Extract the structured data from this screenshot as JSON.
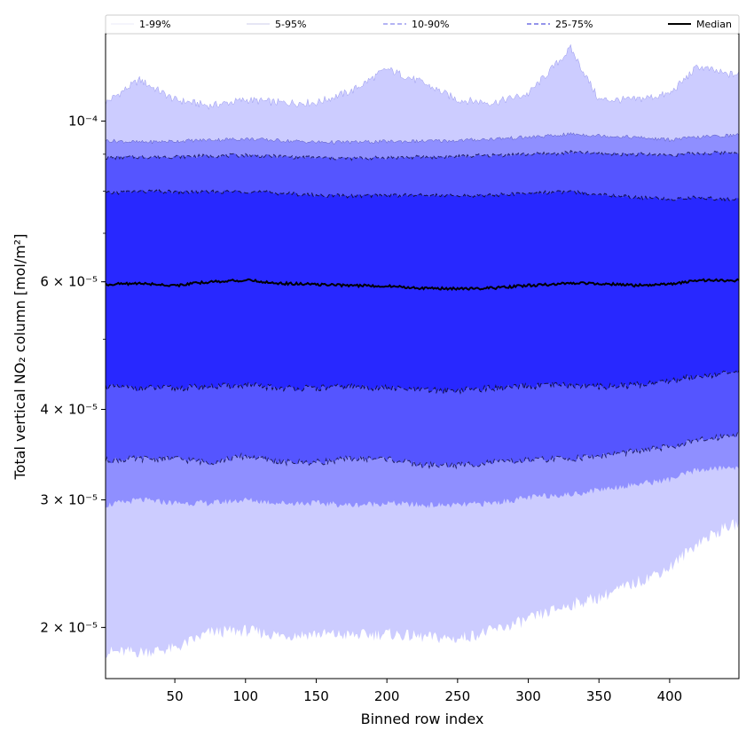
{
  "chart_data": {
    "type": "area",
    "title": "",
    "xlabel": "Binned row index",
    "ylabel": "Total vertical NO₂ column [mol/m²]",
    "xlim": [
      1,
      449
    ],
    "ylim": [
      1.7e-05,
      0.000132
    ],
    "yscale": "log",
    "grid": false,
    "legend_position": "top",
    "x_ticks": [
      50,
      100,
      150,
      200,
      250,
      300,
      350,
      400
    ],
    "y_ticks": [
      {
        "value": 2e-05,
        "label": "2 × 10⁻⁵"
      },
      {
        "value": 3e-05,
        "label": "3 × 10⁻⁵"
      },
      {
        "value": 4e-05,
        "label": "4 × 10⁻⁵"
      },
      {
        "value": 6e-05,
        "label": "6 × 10⁻⁵"
      },
      {
        "value": 0.0001,
        "label": "10⁻⁴"
      }
    ],
    "x": [
      1,
      25,
      50,
      75,
      100,
      125,
      150,
      175,
      200,
      225,
      250,
      275,
      300,
      320,
      330,
      350,
      375,
      400,
      420,
      440,
      449
    ],
    "bands": [
      {
        "name": "1-99%",
        "color": "#ccccff",
        "line_color": "#9999ee",
        "dash": "",
        "lower": [
          1.85e-05,
          1.85e-05,
          1.87e-05,
          1.97e-05,
          1.98e-05,
          1.95e-05,
          1.96e-05,
          1.95e-05,
          1.96e-05,
          1.94e-05,
          1.93e-05,
          1.98e-05,
          2.05e-05,
          2.12e-05,
          2.15e-05,
          2.2e-05,
          2.3e-05,
          2.42e-05,
          2.62e-05,
          2.75e-05,
          2.78e-05
        ],
        "upper": [
          0.000106,
          0.000114,
          0.000107,
          0.000105,
          0.000107,
          0.000106,
          0.000106,
          0.00011,
          0.000118,
          0.000113,
          0.000107,
          0.000106,
          0.000109,
          0.00012,
          0.000126,
          0.000107,
          0.000107,
          0.000109,
          0.000119,
          0.000116,
          0.000116
        ]
      },
      {
        "name": "5-95%",
        "color": "#8f8fff",
        "line_color": "#5555bb",
        "dash": "",
        "lower": [
          2.95e-05,
          3e-05,
          2.97e-05,
          2.97e-05,
          3e-05,
          2.97e-05,
          2.97e-05,
          2.95e-05,
          2.97e-05,
          2.95e-05,
          2.95e-05,
          2.97e-05,
          3.02e-05,
          3.05e-05,
          3.05e-05,
          3.1e-05,
          3.15e-05,
          3.2e-05,
          3.3e-05,
          3.32e-05,
          3.33e-05
        ],
        "upper": [
          9.4e-05,
          9.35e-05,
          9.38e-05,
          9.42e-05,
          9.45e-05,
          9.4e-05,
          9.35e-05,
          9.35e-05,
          9.37e-05,
          9.38e-05,
          9.4e-05,
          9.45e-05,
          9.5e-05,
          9.55e-05,
          9.6e-05,
          9.55e-05,
          9.5e-05,
          9.42e-05,
          9.5e-05,
          9.55e-05,
          9.57e-05
        ]
      },
      {
        "name": "10-90%",
        "color": "#5555ff",
        "line_color": "#222266",
        "dash": "5,3",
        "lower": [
          3.4e-05,
          3.42e-05,
          3.42e-05,
          3.38e-05,
          3.45e-05,
          3.38e-05,
          3.38e-05,
          3.42e-05,
          3.42e-05,
          3.35e-05,
          3.35e-05,
          3.38e-05,
          3.4e-05,
          3.42e-05,
          3.42e-05,
          3.45e-05,
          3.5e-05,
          3.55e-05,
          3.62e-05,
          3.68e-05,
          3.7e-05
        ],
        "upper": [
          8.9e-05,
          8.92e-05,
          8.93e-05,
          8.95e-05,
          8.97e-05,
          8.93e-05,
          8.9e-05,
          8.88e-05,
          8.9e-05,
          8.92e-05,
          8.93e-05,
          8.97e-05,
          9e-05,
          9.02e-05,
          9.05e-05,
          9.02e-05,
          9e-05,
          8.98e-05,
          9.02e-05,
          9.05e-05,
          9.05e-05
        ]
      },
      {
        "name": "25-75%",
        "color": "#2828ff",
        "line_color": "#111144",
        "dash": "5,3",
        "lower": [
          4.3e-05,
          4.28e-05,
          4.28e-05,
          4.3e-05,
          4.32e-05,
          4.28e-05,
          4.28e-05,
          4.3e-05,
          4.28e-05,
          4.25e-05,
          4.25e-05,
          4.28e-05,
          4.3e-05,
          4.32e-05,
          4.32e-05,
          4.3e-05,
          4.32e-05,
          4.38e-05,
          4.45e-05,
          4.48e-05,
          4.5e-05
        ],
        "upper": [
          7.95e-05,
          8e-05,
          7.98e-05,
          7.98e-05,
          8e-05,
          7.95e-05,
          7.9e-05,
          7.88e-05,
          7.9e-05,
          7.9e-05,
          7.88e-05,
          7.9e-05,
          7.95e-05,
          7.98e-05,
          7.98e-05,
          7.93e-05,
          7.85e-05,
          7.8e-05,
          7.85e-05,
          7.8e-05,
          7.8e-05
        ]
      }
    ],
    "median": {
      "name": "Median",
      "color": "#000000",
      "values": [
        5.95e-05,
        5.97e-05,
        5.93e-05,
        6e-05,
        6.03e-05,
        5.97e-05,
        5.95e-05,
        5.93e-05,
        5.92e-05,
        5.88e-05,
        5.87e-05,
        5.88e-05,
        5.93e-05,
        5.95e-05,
        5.98e-05,
        5.97e-05,
        5.93e-05,
        5.95e-05,
        6.03e-05,
        6.02e-05,
        6.03e-05
      ]
    },
    "legend": [
      {
        "label": "1-99%",
        "color": "#d8d8f5",
        "dash": "",
        "width": 0.6
      },
      {
        "label": "5-95%",
        "color": "#9a9ad8",
        "dash": "",
        "width": 0.6
      },
      {
        "label": "10-90%",
        "color": "#8888ee",
        "dash": "5,3",
        "width": 1.2
      },
      {
        "label": "25-75%",
        "color": "#5555dd",
        "dash": "5,3",
        "width": 1.2
      },
      {
        "label": "Median",
        "color": "#000000",
        "dash": "",
        "width": 2
      }
    ]
  }
}
